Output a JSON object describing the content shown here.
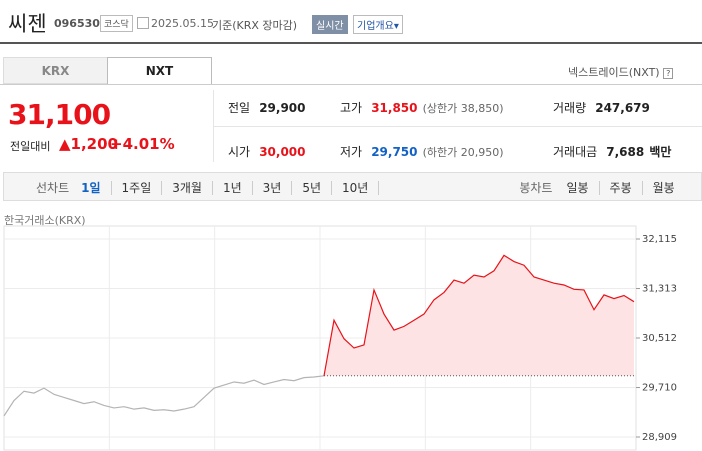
{
  "header": {
    "name": "씨젠",
    "code": "096530",
    "market": "코스닥",
    "date": "2025.05.15",
    "basis": "기준(KRX 장마감)",
    "realtime": "실시간",
    "overview": "기업개요"
  },
  "tabs": [
    "KRX",
    "NXT"
  ],
  "nxt_link": "넥스트레이드(NXT)",
  "price": {
    "current": "31,100",
    "change_label": "전일대비",
    "change": "1,200",
    "change_pct": "+4.01%"
  },
  "stats": [
    {
      "label": "전일",
      "value": "29,900"
    },
    {
      "label": "고가",
      "value": "31,850",
      "note": "(상한가 38,850)"
    },
    {
      "label": "거래량",
      "value": "247,679"
    },
    {
      "label": "시가",
      "value": "30,000"
    },
    {
      "label": "저가",
      "value": "29,750",
      "note": "(하한가 20,950)"
    },
    {
      "label": "거래대금",
      "value": "7,688",
      "unit": "백만"
    }
  ],
  "controls": {
    "line_label": "선차트",
    "line_periods": [
      "1일",
      "1주일",
      "3개월",
      "1년",
      "3년",
      "5년",
      "10년"
    ],
    "candle_label": "봉차트",
    "candle_periods": [
      "일봉",
      "주봉",
      "월봉"
    ]
  },
  "chart_data": {
    "type": "line",
    "source": "한국거래소(KRX)",
    "ylim": [
      28909,
      32115
    ],
    "yticks": [
      {
        "value": 32115,
        "label": "32,115"
      },
      {
        "value": 31313,
        "label": "31,313"
      },
      {
        "value": 30512,
        "label": "30,512"
      },
      {
        "value": 29710,
        "label": "29,710"
      },
      {
        "value": 28909,
        "label": "28,909"
      }
    ],
    "baseline": 29900,
    "grid": true,
    "series": [
      {
        "color": "#b4b4b4",
        "values": [
          29250,
          29500,
          29650,
          29620,
          29700,
          29600,
          29550,
          29500,
          29450,
          29480,
          29420,
          29380,
          29400,
          29360,
          29380,
          29340,
          29350,
          29330,
          29360,
          29400,
          29550,
          29700,
          29750,
          29800,
          29780,
          29830,
          29760,
          29800,
          29840,
          29820,
          29870,
          29880,
          29900,
          null,
          null,
          null,
          null,
          null,
          null,
          null,
          null,
          null,
          null,
          null,
          null,
          null,
          null,
          null,
          null,
          null,
          null,
          null,
          null,
          null,
          null,
          null,
          null,
          null,
          null,
          null,
          null,
          null,
          null,
          null
        ]
      },
      {
        "color": "#e8131a",
        "fill": "#fde3e4",
        "values": [
          null,
          null,
          null,
          null,
          null,
          null,
          null,
          null,
          null,
          null,
          null,
          null,
          null,
          null,
          null,
          null,
          null,
          null,
          null,
          null,
          null,
          null,
          null,
          null,
          null,
          null,
          null,
          null,
          null,
          null,
          null,
          null,
          29900,
          30800,
          30500,
          30350,
          30400,
          31290,
          30900,
          30640,
          30700,
          30800,
          30900,
          31130,
          31250,
          31450,
          31400,
          31530,
          31500,
          31600,
          31850,
          31750,
          31690,
          31500,
          31450,
          31400,
          31370,
          31300,
          31290,
          30970,
          31210,
          31150,
          31200,
          31100
        ]
      }
    ]
  }
}
